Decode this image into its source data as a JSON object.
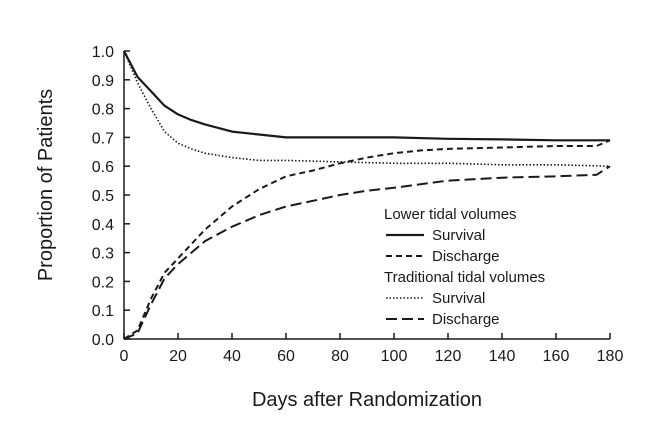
{
  "chart_data": {
    "type": "line",
    "title": "",
    "xlabel": "Days after Randomization",
    "ylabel": "Proportion of Patients",
    "xlim": [
      0,
      180
    ],
    "ylim": [
      0,
      1.0
    ],
    "x_ticks": [
      0,
      20,
      40,
      60,
      80,
      100,
      120,
      140,
      160,
      180
    ],
    "x_tick_labels": [
      "0",
      "20",
      "40",
      "60",
      "80",
      "100",
      "120",
      "140",
      "160",
      "180"
    ],
    "y_ticks": [
      0,
      0.1,
      0.2,
      0.3,
      0.4,
      0.5,
      0.6,
      0.7,
      0.8,
      0.9,
      1.0
    ],
    "y_tick_labels": [
      "0.0",
      "0.1",
      "0.2",
      "0.3",
      "0.4",
      "0.5",
      "0.6",
      "0.7",
      "0.8",
      "0.9",
      "1.0"
    ],
    "grid": false,
    "legend_position": "right",
    "legend": {
      "groups": [
        {
          "title": "Lower tidal volumes",
          "entries": [
            {
              "label": "Survival",
              "style": "solid"
            },
            {
              "label": "Discharge",
              "style": "short-dash"
            }
          ]
        },
        {
          "title": "Traditional tidal volumes",
          "entries": [
            {
              "label": "Survival",
              "style": "dotted"
            },
            {
              "label": "Discharge",
              "style": "long-dash"
            }
          ]
        }
      ]
    },
    "series": [
      {
        "name": "Lower tidal volumes — Survival",
        "style": "solid",
        "x": [
          0,
          5,
          10,
          15,
          20,
          25,
          30,
          40,
          50,
          60,
          80,
          100,
          120,
          140,
          160,
          180
        ],
        "y": [
          1.0,
          0.91,
          0.86,
          0.81,
          0.78,
          0.76,
          0.745,
          0.72,
          0.71,
          0.7,
          0.7,
          0.7,
          0.695,
          0.693,
          0.69,
          0.69
        ]
      },
      {
        "name": "Lower tidal volumes — Discharge",
        "style": "short-dash",
        "x": [
          0,
          5,
          10,
          15,
          20,
          30,
          40,
          50,
          60,
          70,
          80,
          90,
          100,
          110,
          120,
          140,
          160,
          175,
          180
        ],
        "y": [
          0.0,
          0.03,
          0.14,
          0.23,
          0.28,
          0.38,
          0.46,
          0.52,
          0.565,
          0.585,
          0.61,
          0.63,
          0.645,
          0.655,
          0.66,
          0.665,
          0.67,
          0.67,
          0.69
        ]
      },
      {
        "name": "Traditional tidal volumes — Survival",
        "style": "dotted",
        "x": [
          0,
          5,
          10,
          15,
          20,
          25,
          30,
          40,
          50,
          60,
          80,
          100,
          120,
          140,
          160,
          180
        ],
        "y": [
          1.0,
          0.89,
          0.8,
          0.72,
          0.68,
          0.66,
          0.645,
          0.63,
          0.62,
          0.62,
          0.615,
          0.61,
          0.61,
          0.605,
          0.605,
          0.6
        ]
      },
      {
        "name": "Traditional tidal volumes — Discharge",
        "style": "long-dash",
        "x": [
          0,
          5,
          10,
          15,
          20,
          25,
          30,
          40,
          50,
          60,
          70,
          80,
          90,
          100,
          120,
          140,
          160,
          175,
          180
        ],
        "y": [
          0.0,
          0.02,
          0.12,
          0.21,
          0.26,
          0.3,
          0.34,
          0.39,
          0.43,
          0.46,
          0.48,
          0.5,
          0.515,
          0.525,
          0.55,
          0.56,
          0.565,
          0.57,
          0.6
        ]
      }
    ]
  }
}
